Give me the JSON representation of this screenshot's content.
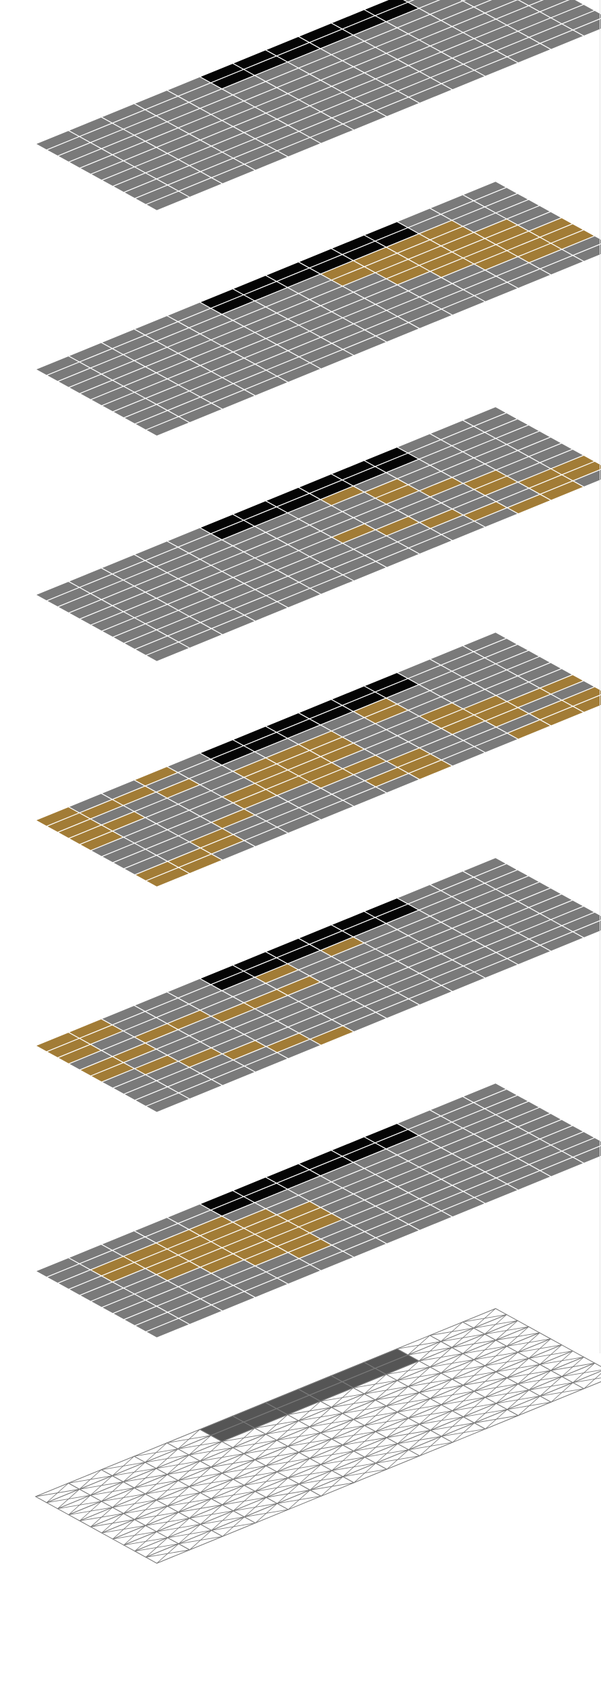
{
  "grid": {
    "rows": 11,
    "cols": 14
  },
  "colors": {
    "base": "#7a7a7a",
    "corridor": "#050505",
    "highlight": "#a27c36",
    "grid_line": "#ffffff",
    "outline_tile": "#ffffff",
    "outline_stroke": "#7a7a7a",
    "outline_corridor": "#555555",
    "background": "#ffffff"
  },
  "corridor": [
    [
      5,
      0
    ],
    [
      6,
      0
    ],
    [
      7,
      0
    ],
    [
      8,
      0
    ],
    [
      9,
      0
    ],
    [
      10,
      0
    ],
    [
      5,
      1
    ],
    [
      6,
      1
    ],
    [
      7,
      1
    ],
    [
      8,
      1
    ],
    [
      9,
      1
    ],
    [
      10,
      1
    ]
  ],
  "layers": [
    {
      "name": "layer-1-plan",
      "style": "solid",
      "highlight": []
    },
    {
      "name": "layer-2-plan",
      "style": "solid",
      "highlight": [
        [
          8,
          2
        ],
        [
          8,
          3
        ],
        [
          9,
          1
        ],
        [
          9,
          2
        ],
        [
          9,
          3
        ],
        [
          9,
          4
        ],
        [
          9,
          5
        ],
        [
          10,
          1
        ],
        [
          10,
          2
        ],
        [
          10,
          3
        ],
        [
          10,
          4
        ],
        [
          10,
          5
        ],
        [
          10,
          6
        ],
        [
          11,
          2
        ],
        [
          11,
          3
        ],
        [
          11,
          4
        ],
        [
          11,
          5
        ],
        [
          11,
          6
        ],
        [
          11,
          7
        ],
        [
          12,
          4
        ],
        [
          12,
          5
        ],
        [
          12,
          6
        ],
        [
          12,
          7
        ],
        [
          12,
          8
        ],
        [
          13,
          6
        ],
        [
          13,
          7
        ],
        [
          13,
          8
        ]
      ]
    },
    {
      "name": "layer-3-plan",
      "style": "solid",
      "highlight": [
        [
          7,
          1
        ],
        [
          8,
          0
        ],
        [
          8,
          1
        ],
        [
          8,
          2
        ],
        [
          9,
          3
        ],
        [
          9,
          4
        ],
        [
          10,
          5
        ],
        [
          11,
          6
        ],
        [
          11,
          7
        ],
        [
          12,
          8
        ],
        [
          12,
          9
        ],
        [
          13,
          8
        ],
        [
          13,
          9
        ],
        [
          11,
          10
        ],
        [
          12,
          10
        ],
        [
          10,
          9
        ],
        [
          9,
          8
        ],
        [
          8,
          7
        ],
        [
          7,
          6
        ]
      ]
    },
    {
      "name": "layer-4-plan",
      "style": "solid",
      "highlight": [
        [
          0,
          0
        ],
        [
          0,
          1
        ],
        [
          0,
          2
        ],
        [
          0,
          3
        ],
        [
          0,
          4
        ],
        [
          1,
          1
        ],
        [
          1,
          3
        ],
        [
          2,
          1
        ],
        [
          3,
          0
        ],
        [
          3,
          2
        ],
        [
          0,
          9
        ],
        [
          0,
          10
        ],
        [
          1,
          9
        ],
        [
          1,
          10
        ],
        [
          2,
          8
        ],
        [
          2,
          9
        ],
        [
          3,
          7
        ],
        [
          4,
          6
        ],
        [
          4,
          5
        ],
        [
          5,
          3
        ],
        [
          5,
          4
        ],
        [
          5,
          5
        ],
        [
          5,
          6
        ],
        [
          6,
          3
        ],
        [
          6,
          4
        ],
        [
          6,
          5
        ],
        [
          6,
          6
        ],
        [
          6,
          7
        ],
        [
          7,
          3
        ],
        [
          7,
          4
        ],
        [
          7,
          5
        ],
        [
          7,
          7
        ],
        [
          7,
          9
        ],
        [
          8,
          8
        ],
        [
          8,
          9
        ],
        [
          8,
          10
        ],
        [
          9,
          0
        ],
        [
          9,
          1
        ],
        [
          9,
          2
        ],
        [
          9,
          3
        ],
        [
          10,
          5
        ],
        [
          10,
          6
        ],
        [
          10,
          7
        ],
        [
          11,
          6
        ],
        [
          11,
          7
        ],
        [
          11,
          8
        ],
        [
          12,
          7
        ],
        [
          12,
          9
        ],
        [
          13,
          7
        ],
        [
          13,
          9
        ],
        [
          13,
          10
        ],
        [
          12,
          10
        ],
        [
          11,
          10
        ]
      ]
    },
    {
      "name": "layer-5-plan",
      "style": "solid",
      "highlight": [
        [
          0,
          0
        ],
        [
          1,
          0
        ],
        [
          1,
          1
        ],
        [
          0,
          1
        ],
        [
          0,
          2
        ],
        [
          0,
          4
        ],
        [
          0,
          5
        ],
        [
          1,
          4
        ],
        [
          1,
          6
        ],
        [
          2,
          7
        ],
        [
          3,
          8
        ],
        [
          4,
          9
        ],
        [
          5,
          10
        ],
        [
          4,
          4
        ],
        [
          3,
          3
        ],
        [
          2,
          3
        ],
        [
          5,
          4
        ],
        [
          6,
          4
        ],
        [
          6,
          2
        ],
        [
          7,
          1
        ],
        [
          6,
          1
        ],
        [
          8,
          2
        ]
      ]
    },
    {
      "name": "layer-6-plan",
      "style": "solid",
      "highlight": [
        [
          1,
          2
        ],
        [
          1,
          3
        ],
        [
          2,
          2
        ],
        [
          2,
          3
        ],
        [
          2,
          4
        ],
        [
          2,
          5
        ],
        [
          3,
          2
        ],
        [
          3,
          3
        ],
        [
          3,
          4
        ],
        [
          3,
          5
        ],
        [
          3,
          6
        ],
        [
          4,
          2
        ],
        [
          4,
          3
        ],
        [
          4,
          4
        ],
        [
          4,
          5
        ],
        [
          4,
          6
        ],
        [
          4,
          7
        ],
        [
          5,
          3
        ],
        [
          5,
          4
        ],
        [
          5,
          5
        ],
        [
          5,
          6
        ],
        [
          5,
          7
        ],
        [
          5,
          8
        ],
        [
          6,
          4
        ],
        [
          6,
          5
        ],
        [
          6,
          6
        ]
      ]
    },
    {
      "name": "layer-7-structure",
      "style": "outline",
      "highlight": []
    }
  ]
}
